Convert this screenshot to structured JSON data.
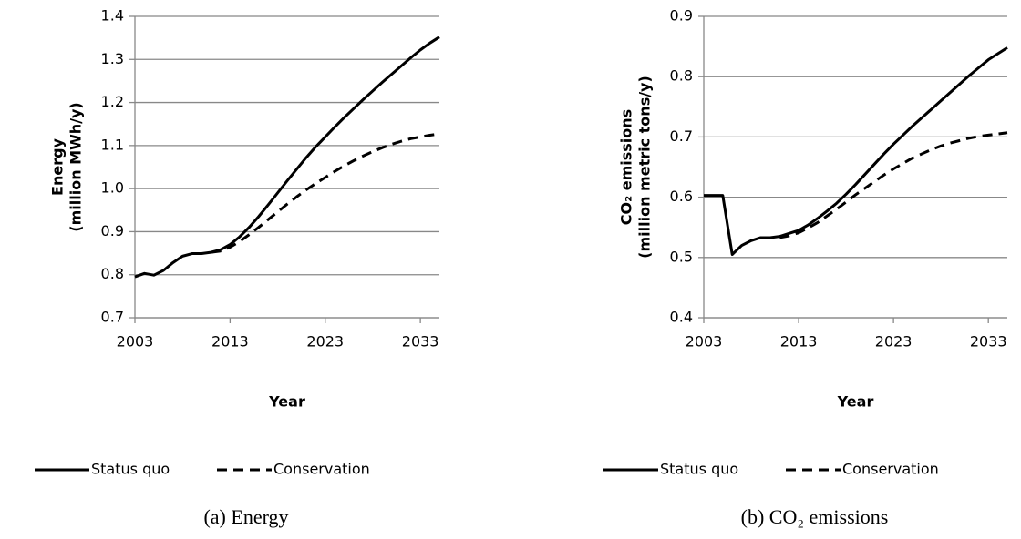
{
  "chart_data": [
    {
      "type": "line",
      "ylabel": [
        "Energy",
        "(million MWh/y)"
      ],
      "xlabel": "Year",
      "caption": "(a) Energy",
      "x": [
        2003,
        2004,
        2005,
        2006,
        2007,
        2008,
        2009,
        2010,
        2011,
        2012,
        2013,
        2014,
        2015,
        2016,
        2017,
        2018,
        2019,
        2020,
        2021,
        2022,
        2023,
        2024,
        2025,
        2026,
        2027,
        2028,
        2029,
        2030,
        2031,
        2032,
        2033,
        2034,
        2035
      ],
      "series": [
        {
          "name": "Status quo",
          "color": "#000000",
          "dash": false,
          "values": [
            0.795,
            0.803,
            0.799,
            0.81,
            0.828,
            0.843,
            0.849,
            0.849,
            0.852,
            0.858,
            0.87,
            0.888,
            0.91,
            0.935,
            0.962,
            0.99,
            1.018,
            1.045,
            1.072,
            1.097,
            1.12,
            1.143,
            1.165,
            1.186,
            1.207,
            1.227,
            1.247,
            1.266,
            1.285,
            1.304,
            1.322,
            1.338,
            1.352
          ]
        },
        {
          "name": "Conservation",
          "color": "#000000",
          "dash": true,
          "values": [
            null,
            null,
            null,
            null,
            null,
            null,
            null,
            null,
            0.852,
            0.855,
            0.864,
            0.877,
            0.893,
            0.91,
            0.928,
            0.946,
            0.964,
            0.981,
            0.997,
            1.012,
            1.026,
            1.04,
            1.053,
            1.065,
            1.076,
            1.086,
            1.095,
            1.103,
            1.11,
            1.116,
            1.12,
            1.124,
            1.127
          ]
        }
      ],
      "xlim": [
        2003,
        2035
      ],
      "xticks": [
        2003,
        2013,
        2023,
        2033
      ],
      "ylim": [
        0.7,
        1.4
      ],
      "yticks": [
        0.7,
        0.8,
        0.9,
        {
          "value": 1,
          "label": "1.0"
        },
        1.1,
        1.2,
        1.3,
        1.4
      ],
      "grid": true,
      "legend": "bottom"
    },
    {
      "type": "line",
      "ylabel": [
        "CO₂ emissions",
        "(million metric tons/y)"
      ],
      "xlabel": "Year",
      "caption": "(b) CO₂ emissions",
      "x": [
        2003,
        2004,
        2005,
        2006,
        2007,
        2008,
        2009,
        2010,
        2011,
        2012,
        2013,
        2014,
        2015,
        2016,
        2017,
        2018,
        2019,
        2020,
        2021,
        2022,
        2023,
        2024,
        2025,
        2026,
        2027,
        2028,
        2029,
        2030,
        2031,
        2032,
        2033,
        2034,
        2035
      ],
      "series": [
        {
          "name": "Status quo",
          "color": "#000000",
          "dash": false,
          "values": [
            0.603,
            0.603,
            0.603,
            0.505,
            0.52,
            0.528,
            0.533,
            0.533,
            0.535,
            0.54,
            0.545,
            0.554,
            0.565,
            0.577,
            0.59,
            0.605,
            0.621,
            0.638,
            0.655,
            0.672,
            0.688,
            0.703,
            0.718,
            0.732,
            0.746,
            0.76,
            0.774,
            0.788,
            0.802,
            0.815,
            0.828,
            0.838,
            0.848
          ]
        },
        {
          "name": "Conservation",
          "color": "#000000",
          "dash": true,
          "values": [
            null,
            null,
            null,
            null,
            null,
            null,
            null,
            null,
            0.533,
            0.536,
            0.541,
            0.549,
            0.558,
            0.569,
            0.58,
            0.592,
            0.604,
            0.615,
            0.626,
            0.637,
            0.647,
            0.656,
            0.665,
            0.672,
            0.679,
            0.685,
            0.69,
            0.694,
            0.698,
            0.701,
            0.703,
            0.705,
            0.707
          ]
        }
      ],
      "xlim": [
        2003,
        2035
      ],
      "xticks": [
        2003,
        2013,
        2023,
        2033
      ],
      "ylim": [
        0.4,
        0.9
      ],
      "yticks": [
        0.4,
        0.5,
        0.6,
        0.7,
        0.8,
        0.9
      ],
      "grid": true,
      "legend": "bottom"
    }
  ]
}
